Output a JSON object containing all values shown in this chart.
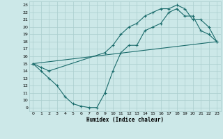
{
  "xlabel": "Humidex (Indice chaleur)",
  "bg_color": "#cce8e8",
  "grid_color": "#aacece",
  "line_color": "#1a6b6b",
  "xlim": [
    -0.5,
    23.5
  ],
  "ylim": [
    8.5,
    23.5
  ],
  "xticks": [
    0,
    1,
    2,
    3,
    4,
    5,
    6,
    7,
    8,
    9,
    10,
    11,
    12,
    13,
    14,
    15,
    16,
    17,
    18,
    19,
    20,
    21,
    22,
    23
  ],
  "yticks": [
    9,
    10,
    11,
    12,
    13,
    14,
    15,
    16,
    17,
    18,
    19,
    20,
    21,
    22,
    23
  ],
  "line1_x": [
    0,
    23
  ],
  "line1_y": [
    15.0,
    18.0
  ],
  "line2_x": [
    0,
    1,
    2,
    3,
    4,
    5,
    6,
    7,
    8,
    9,
    10,
    11,
    12,
    13,
    14,
    15,
    16,
    17,
    18,
    19,
    20,
    21,
    22,
    23
  ],
  "line2_y": [
    15,
    14,
    13,
    12,
    10.5,
    9.5,
    9.2,
    9.0,
    9.0,
    11.0,
    14.0,
    16.5,
    17.5,
    17.5,
    19.5,
    20.0,
    20.5,
    22.0,
    22.5,
    21.5,
    21.5,
    19.5,
    19.0,
    18.0
  ],
  "line3_x": [
    0,
    1,
    2,
    9,
    10,
    11,
    12,
    13,
    14,
    15,
    16,
    17,
    18,
    19,
    20,
    21,
    22,
    23
  ],
  "line3_y": [
    15,
    14.5,
    14,
    16.5,
    17.5,
    19.0,
    20.0,
    20.5,
    21.5,
    22.0,
    22.5,
    22.5,
    23.0,
    22.5,
    21.0,
    21.0,
    20.0,
    18.0
  ]
}
